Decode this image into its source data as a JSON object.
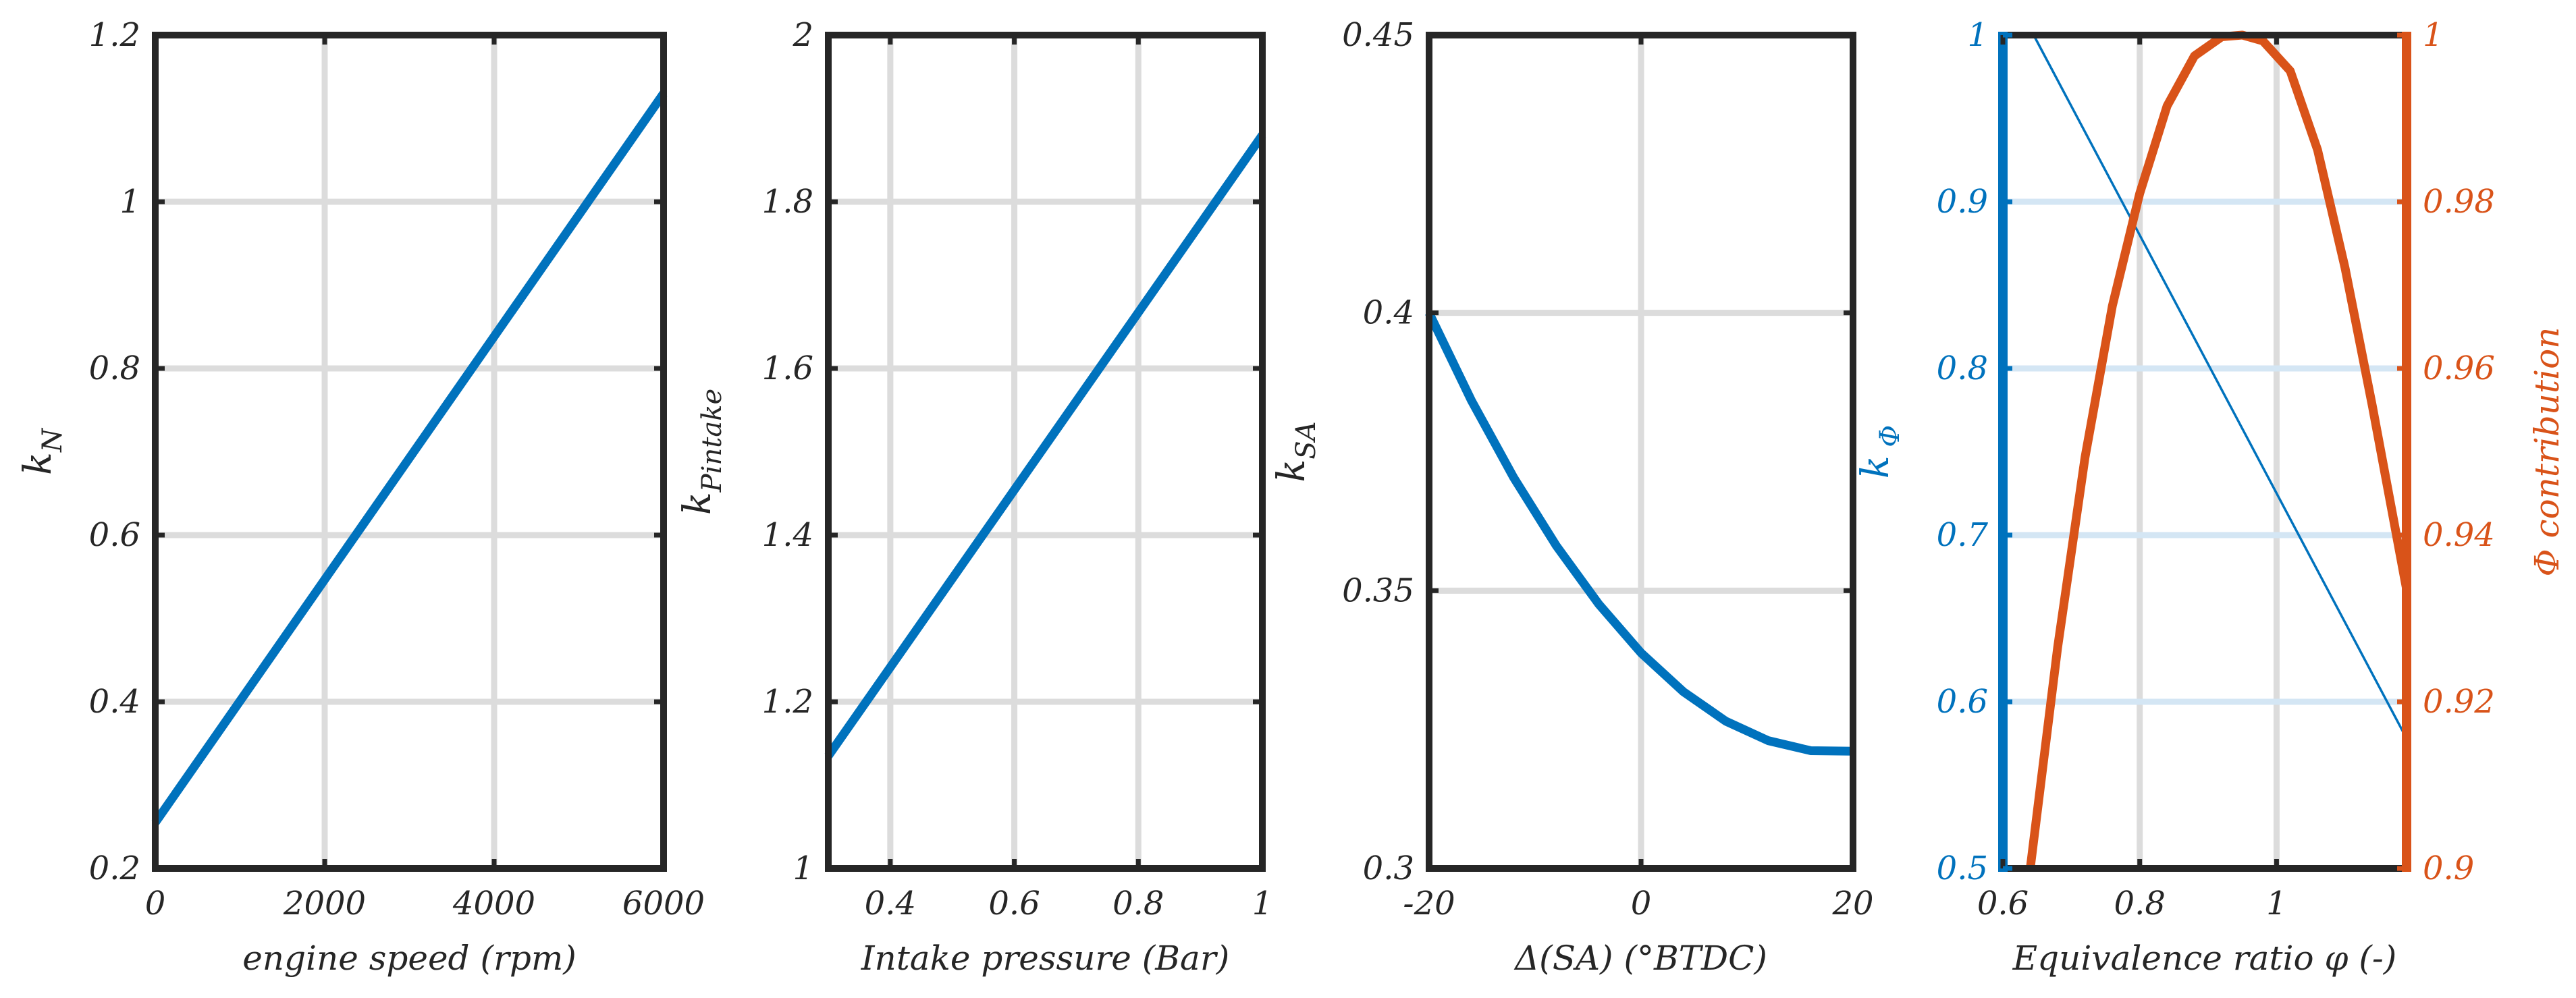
{
  "colors": {
    "axis": "#262626",
    "grid": "#dcdcdc",
    "blue": "#0072bd",
    "blue_grid": "#d4e6f4",
    "orange": "#d95319"
  },
  "chart_data": [
    {
      "type": "line",
      "xlabel": "engine speed (rpm)",
      "ylabel": "k",
      "ylabel_sub": "N",
      "xlim": [
        0,
        6000
      ],
      "ylim": [
        0.2,
        1.2
      ],
      "xticks": [
        0,
        2000,
        4000,
        6000
      ],
      "xtick_labels": [
        "0",
        "2000",
        "4000",
        "6000"
      ],
      "yticks": [
        0.2,
        0.4,
        0.6,
        0.8,
        1.0,
        1.2
      ],
      "ytick_labels": [
        "0.2",
        "0.4",
        "0.6",
        "0.8",
        "1",
        "1.2"
      ],
      "grid": true,
      "series": [
        {
          "x": [
            0,
            6000
          ],
          "y": [
            0.255,
            1.13
          ],
          "color": "blue"
        }
      ]
    },
    {
      "type": "line",
      "xlabel": "Intake pressure (Bar)",
      "ylabel": "k",
      "ylabel_sub": "Pintake",
      "xlim": [
        0.3,
        1.0
      ],
      "ylim": [
        1.0,
        2.0
      ],
      "xticks": [
        0.4,
        0.6,
        0.8,
        1.0
      ],
      "xtick_labels": [
        "0.4",
        "0.6",
        "0.8",
        "1"
      ],
      "yticks": [
        1.0,
        1.2,
        1.4,
        1.6,
        1.8,
        2.0
      ],
      "ytick_labels": [
        "1",
        "1.2",
        "1.4",
        "1.6",
        "1.8",
        "2"
      ],
      "grid": true,
      "series": [
        {
          "x": [
            0.3,
            1.0
          ],
          "y": [
            1.135,
            1.88
          ],
          "color": "blue"
        }
      ]
    },
    {
      "type": "line",
      "xlabel": "Δ(SA) (°BTDC)",
      "ylabel": "k",
      "ylabel_sub": "SA",
      "xlim": [
        -20,
        20
      ],
      "ylim": [
        0.3,
        0.45
      ],
      "xticks": [
        -20,
        0,
        20
      ],
      "xtick_labels": [
        "-20",
        "0",
        "20"
      ],
      "yticks": [
        0.3,
        0.35,
        0.4,
        0.45
      ],
      "ytick_labels": [
        "0.3",
        "0.35",
        "0.4",
        "0.45"
      ],
      "grid": true,
      "series": [
        {
          "x": [
            -20,
            -16,
            -12,
            -8,
            -4,
            0,
            4,
            8,
            12,
            16,
            20
          ],
          "y": [
            0.4,
            0.3842,
            0.3703,
            0.3581,
            0.3476,
            0.3388,
            0.3318,
            0.3265,
            0.323,
            0.3212,
            0.3211
          ],
          "color": "blue"
        }
      ]
    },
    {
      "type": "line",
      "xlabel": "Equivalence ratio   φ (-)",
      "ylabel": "k",
      "ylabel_sub": "Φ",
      "y2label": "Φ contribution",
      "xlim": [
        0.6,
        1.19
      ],
      "ylim": [
        0.5,
        1.0
      ],
      "y2lim": [
        0.9,
        1.0
      ],
      "xticks": [
        0.6,
        0.8,
        1.0
      ],
      "xtick_labels": [
        "0.6",
        "0.8",
        "1"
      ],
      "yticks": [
        0.5,
        0.6,
        0.7,
        0.8,
        0.9,
        1.0
      ],
      "ytick_labels": [
        "0.5",
        "0.6",
        "0.7",
        "0.8",
        "0.9",
        "1"
      ],
      "y2ticks": [
        0.9,
        0.92,
        0.94,
        0.96,
        0.98,
        1.0
      ],
      "y2tick_labels": [
        "0.9",
        "0.92",
        "0.94",
        "0.96",
        "0.98",
        "1"
      ],
      "grid": true,
      "series": [
        {
          "axis": "left",
          "x": [
            0.645,
            1.19
          ],
          "y": [
            1.0,
            0.578
          ],
          "color": "blue"
        },
        {
          "axis": "right",
          "x": [
            0.64,
            0.68,
            0.72,
            0.76,
            0.8,
            0.84,
            0.88,
            0.92,
            0.95,
            0.98,
            1.02,
            1.06,
            1.1,
            1.14,
            1.19
          ],
          "y": [
            0.9,
            0.9265,
            0.9493,
            0.9675,
            0.981,
            0.9915,
            0.9975,
            0.9998,
            1.0,
            0.9993,
            0.9957,
            0.9862,
            0.9721,
            0.9555,
            0.9335
          ],
          "color": "orange"
        }
      ]
    }
  ]
}
